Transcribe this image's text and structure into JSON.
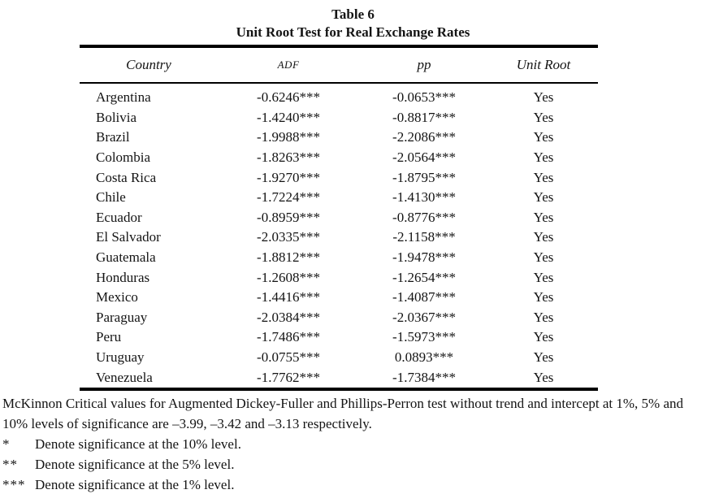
{
  "table": {
    "title_line1": "Table 6",
    "title_line2": "Unit Root Test for Real Exchange Rates",
    "columns": [
      "Country",
      "ADF",
      "pp",
      "Unit Root"
    ],
    "rows": [
      {
        "country": "Argentina",
        "adf": "-0.6246***",
        "pp": "-0.0653***",
        "unit_root": "Yes"
      },
      {
        "country": "Bolivia",
        "adf": "-1.4240***",
        "pp": "-0.8817***",
        "unit_root": "Yes"
      },
      {
        "country": "Brazil",
        "adf": "-1.9988***",
        "pp": "-2.2086***",
        "unit_root": "Yes"
      },
      {
        "country": "Colombia",
        "adf": "-1.8263***",
        "pp": "-2.0564***",
        "unit_root": "Yes"
      },
      {
        "country": "Costa Rica",
        "adf": "-1.9270***",
        "pp": "-1.8795***",
        "unit_root": "Yes"
      },
      {
        "country": "Chile",
        "adf": "-1.7224***",
        "pp": "-1.4130***",
        "unit_root": "Yes"
      },
      {
        "country": "Ecuador",
        "adf": "-0.8959***",
        "pp": "-0.8776***",
        "unit_root": "Yes"
      },
      {
        "country": "El Salvador",
        "adf": "-2.0335***",
        "pp": "-2.1158***",
        "unit_root": "Yes"
      },
      {
        "country": "Guatemala",
        "adf": "-1.8812***",
        "pp": "-1.9478***",
        "unit_root": "Yes"
      },
      {
        "country": "Honduras",
        "adf": "-1.2608***",
        "pp": "-1.2654***",
        "unit_root": "Yes"
      },
      {
        "country": "Mexico",
        "adf": "-1.4416***",
        "pp": "-1.4087***",
        "unit_root": "Yes"
      },
      {
        "country": "Paraguay",
        "adf": "-2.0384***",
        "pp": "-2.0367***",
        "unit_root": "Yes"
      },
      {
        "country": "Peru",
        "adf": "-1.7486***",
        "pp": "-1.5973***",
        "unit_root": "Yes"
      },
      {
        "country": "Uruguay",
        "adf": "-0.0755***",
        "pp": "0.0893***",
        "unit_root": "Yes"
      },
      {
        "country": "Venezuela",
        "adf": "-1.7762***",
        "pp": "-1.7384***",
        "unit_root": "Yes"
      }
    ]
  },
  "notes": {
    "critical_values": "McKinnon Critical values for Augmented Dickey-Fuller and Phillips-Perron test without trend and intercept at 1%, 5% and 10% levels of significance are –3.99, –3.42 and –3.13 respectively.",
    "significance": [
      {
        "marker": "*",
        "text": "Denote significance at the 10% level."
      },
      {
        "marker": "**",
        "text": "Denote significance at the 5% level."
      },
      {
        "marker": "***",
        "text": "Denote significance at the 1% level."
      }
    ]
  },
  "colors": {
    "background": "#ffffff",
    "text": "#141414",
    "rule": "#000000"
  }
}
